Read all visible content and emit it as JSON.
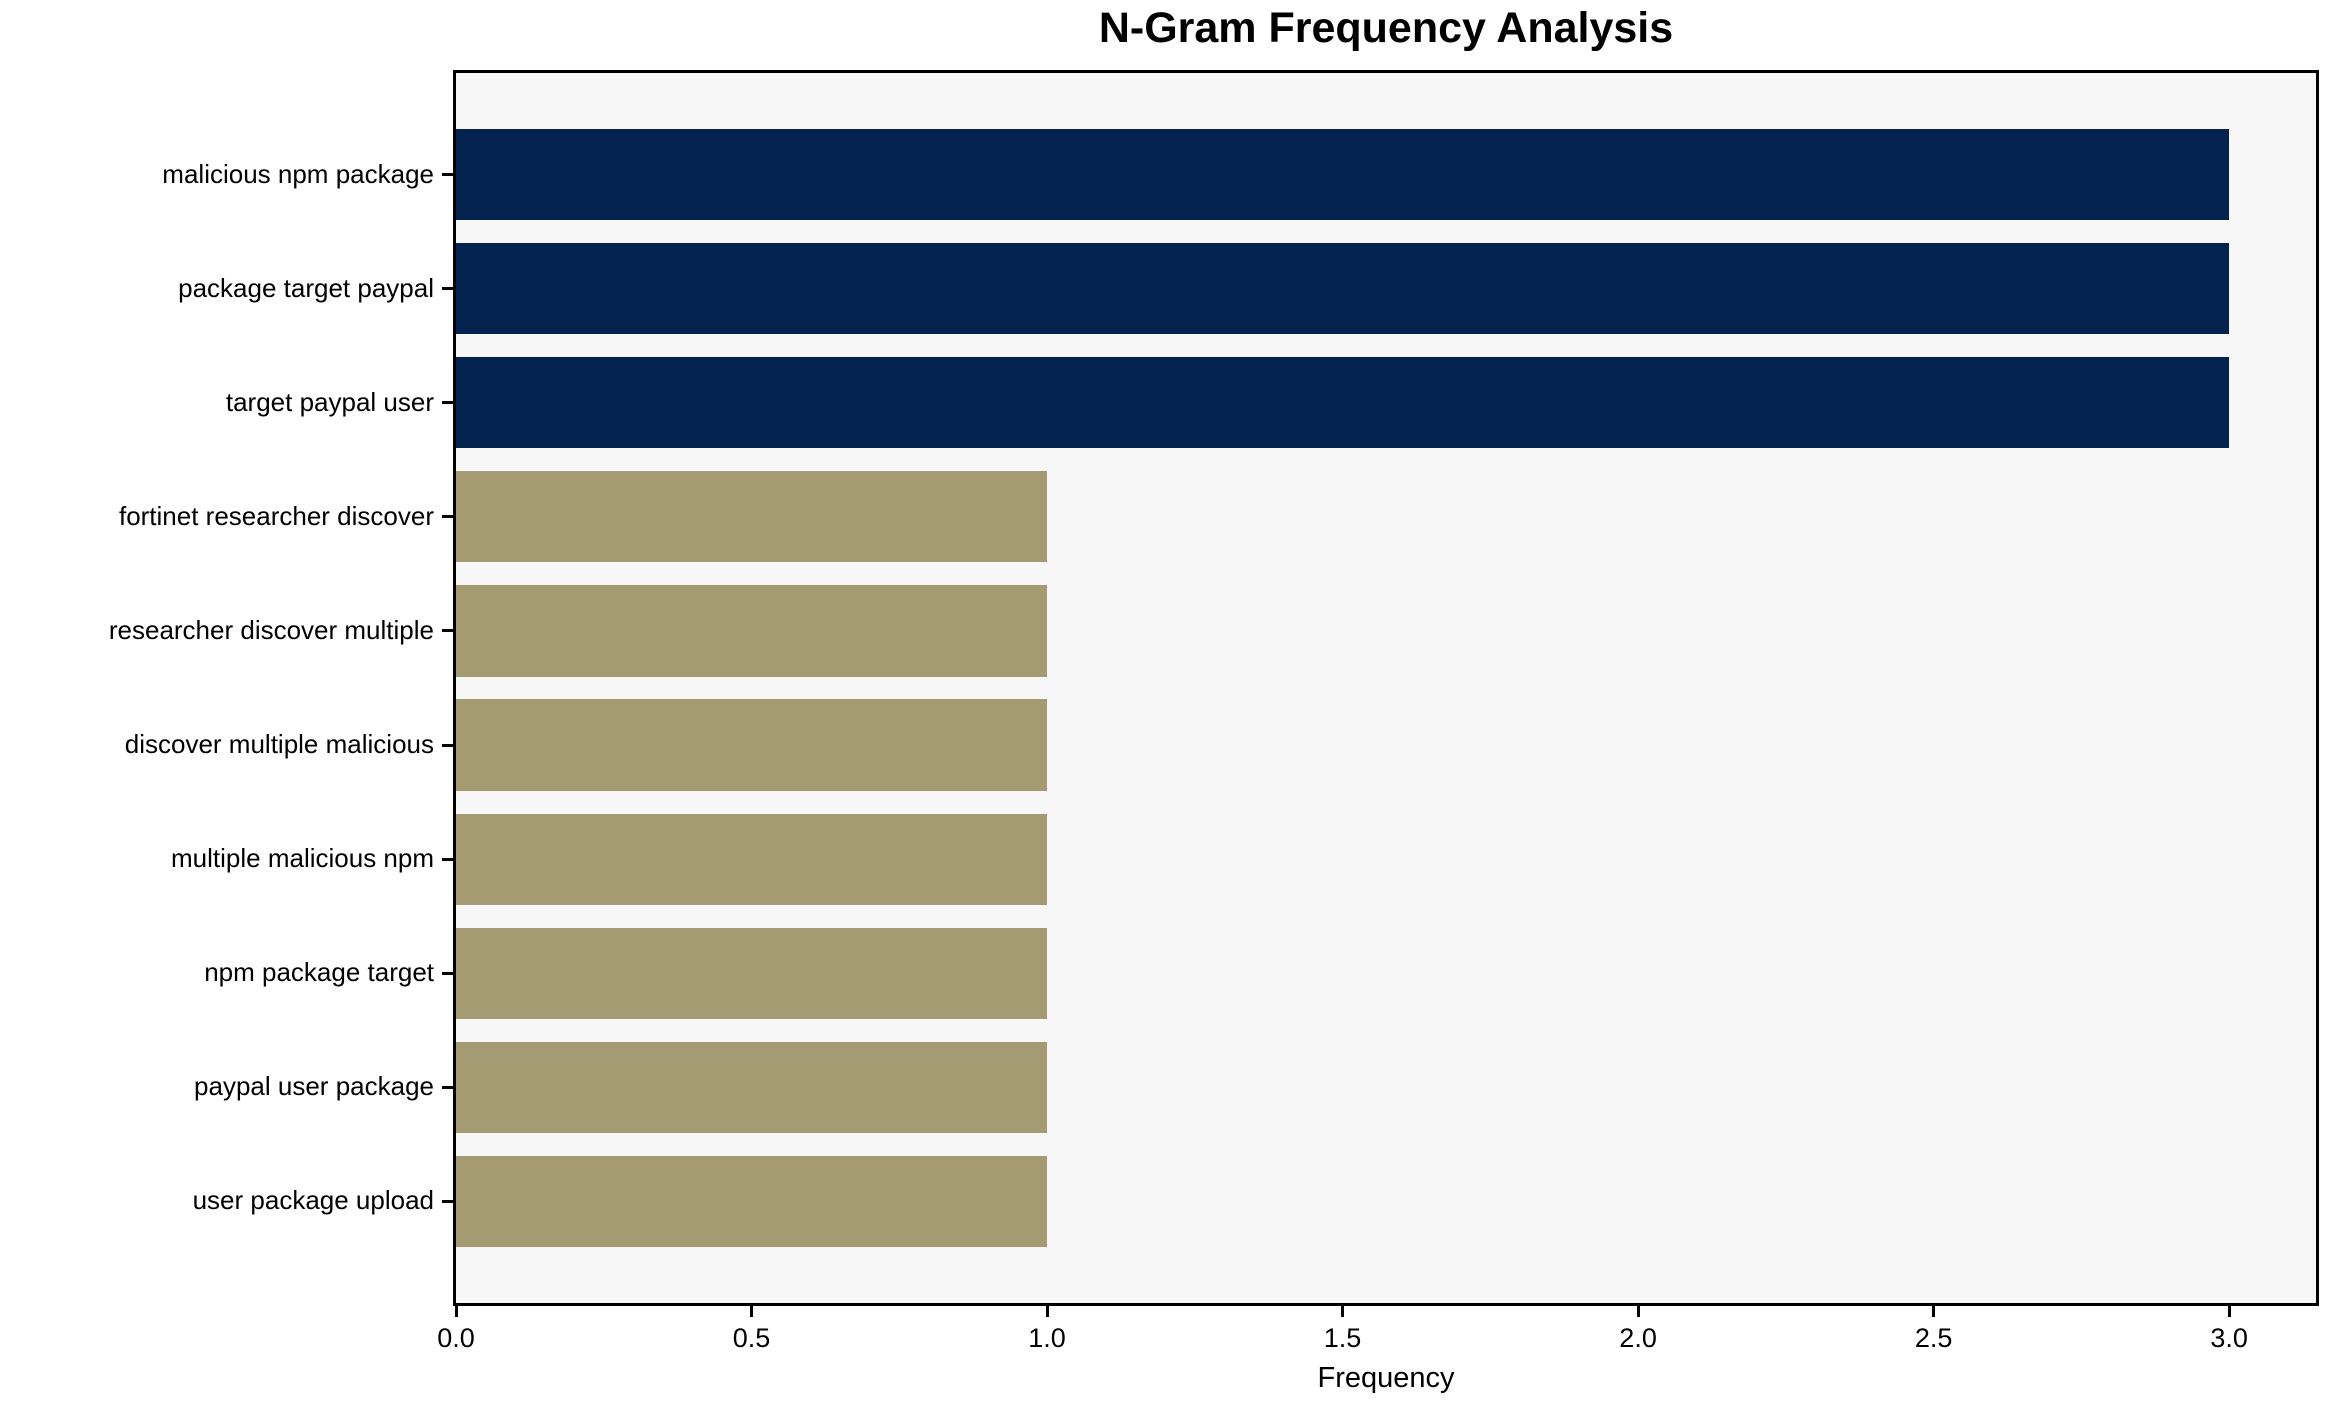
{
  "chart_data": {
    "type": "bar",
    "orientation": "horizontal",
    "title": "N-Gram Frequency Analysis",
    "xlabel": "Frequency",
    "ylabel": "",
    "categories": [
      "malicious npm package",
      "package target paypal",
      "target paypal user",
      "fortinet researcher discover",
      "researcher discover multiple",
      "discover multiple malicious",
      "multiple malicious npm",
      "npm package target",
      "paypal user package",
      "user package upload"
    ],
    "values": [
      3,
      3,
      3,
      1,
      1,
      1,
      1,
      1,
      1,
      1
    ],
    "bar_colors": [
      "#03224d",
      "#03224d",
      "#03224d",
      "#a49b72",
      "#a49b72",
      "#a49b72",
      "#a49b72",
      "#a49b72",
      "#a49b72",
      "#a49b72"
    ],
    "xlim": [
      0,
      3.147
    ],
    "xticks": [
      0.0,
      0.5,
      1.0,
      1.5,
      2.0,
      2.5,
      3.0
    ],
    "xtick_labels": [
      "0.0",
      "0.5",
      "1.0",
      "1.5",
      "2.0",
      "2.5",
      "3.0"
    ],
    "grid": false,
    "legend": null,
    "colors": {
      "highlight_bar": "#03224d",
      "normal_bar": "#a49b72",
      "plot_background": "#f7f7f7",
      "figure_background": "#ffffff",
      "spine": "#000000",
      "text": "#000000"
    }
  }
}
